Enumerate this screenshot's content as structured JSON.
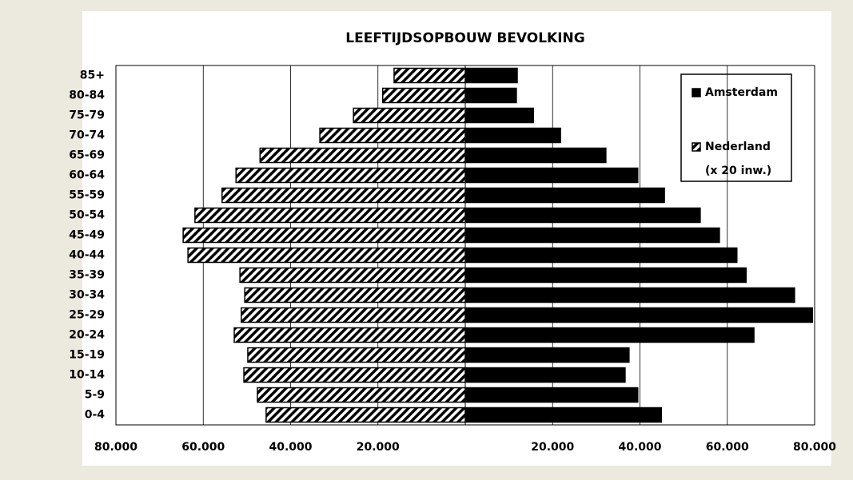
{
  "chart_data": {
    "type": "bar",
    "orientation": "horizontal",
    "title": "LEEFTIJDSOPBOUW BEVOLKING",
    "categories": [
      "85+",
      "80-84",
      "75-79",
      "70-74",
      "65-69",
      "60-64",
      "55-59",
      "50-54",
      "45-49",
      "40-44",
      "35-39",
      "30-34",
      "25-29",
      "20-24",
      "15-19",
      "10-14",
      "5-9",
      "0-4"
    ],
    "series": [
      {
        "name": "Amsterdam",
        "color": "#000000",
        "values": [
          11900,
          11700,
          15600,
          21800,
          32200,
          39500,
          45600,
          53800,
          58200,
          62200,
          64300,
          75400,
          79500,
          66100,
          37500,
          36600,
          39500,
          44900
        ]
      },
      {
        "name": "Nederland",
        "color": "hatched",
        "values": [
          -16300,
          -18900,
          -25600,
          -33300,
          -47000,
          -52500,
          -55700,
          -61900,
          -64600,
          -63500,
          -51600,
          -50500,
          -51300,
          -52900,
          -49800,
          -50700,
          -47600,
          -45600
        ]
      }
    ],
    "legend_note": "(x 20 inw.)",
    "xlim": [
      -80000,
      80000
    ],
    "xticks": [
      {
        "value": -80000,
        "label": "80.000"
      },
      {
        "value": -60000,
        "label": "60.000"
      },
      {
        "value": -40000,
        "label": "40.000"
      },
      {
        "value": -20000,
        "label": "20.000"
      },
      {
        "value": 20000,
        "label": "20.000"
      },
      {
        "value": 40000,
        "label": "40.000"
      },
      {
        "value": 60000,
        "label": "60.000"
      },
      {
        "value": 80000,
        "label": "80.000"
      }
    ],
    "grid": true,
    "legend": "upper right"
  }
}
